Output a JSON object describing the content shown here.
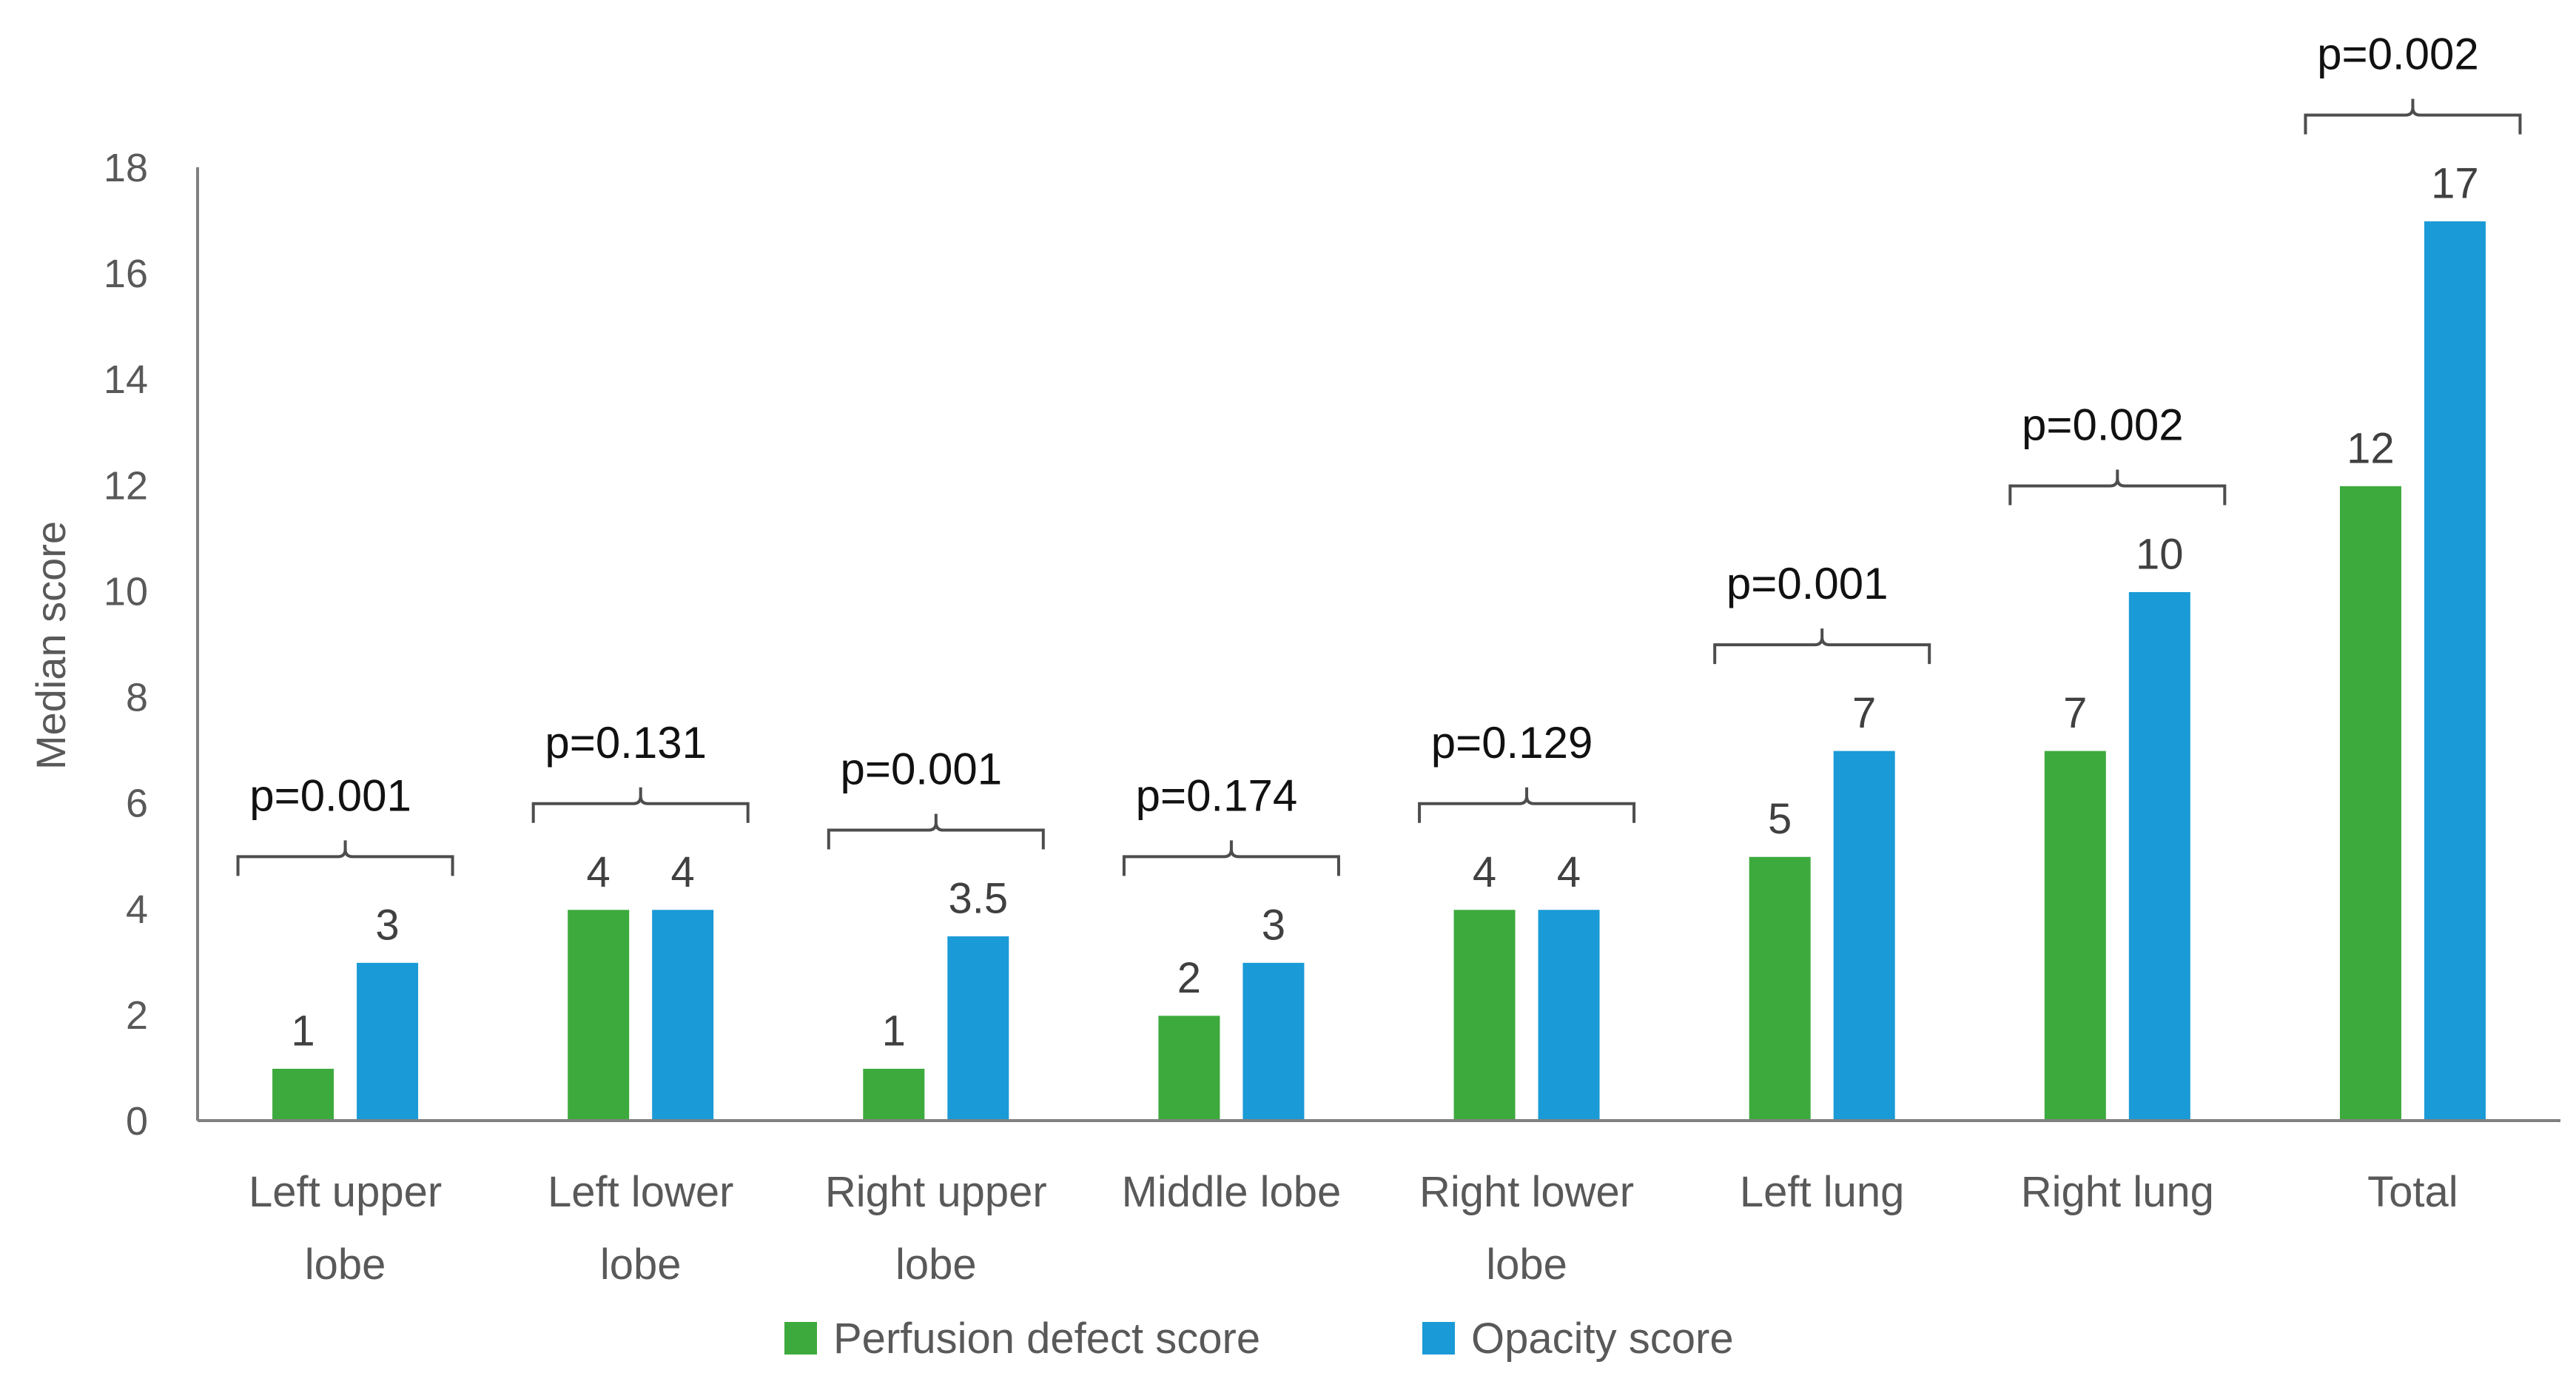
{
  "chart_data": {
    "type": "bar",
    "categories": [
      [
        "Left upper",
        "lobe"
      ],
      [
        "Left lower",
        "lobe"
      ],
      [
        "Right upper",
        "lobe"
      ],
      [
        "Middle lobe"
      ],
      [
        "Right lower",
        "lobe"
      ],
      [
        "Left lung"
      ],
      [
        "Right lung"
      ],
      [
        "Total"
      ]
    ],
    "series": [
      {
        "name": "Perfusion defect score",
        "color": "#3DAA3D",
        "values": [
          1,
          4,
          1,
          2,
          4,
          5,
          7,
          12
        ]
      },
      {
        "name": "Opacity score",
        "color": "#1A9AD6",
        "values": [
          3,
          4,
          3.5,
          3,
          4,
          7,
          10,
          17
        ]
      }
    ],
    "data_labels": [
      [
        "1",
        "4",
        "1",
        "2",
        "4",
        "5",
        "7",
        "12"
      ],
      [
        "3",
        "4",
        "3.5",
        "3",
        "4",
        "7",
        "10",
        "17"
      ]
    ],
    "p_values": [
      "p=0.001",
      "p=0.131",
      "p=0.001",
      "p=0.174",
      "p=0.129",
      "p=0.001",
      "p=0.002",
      "p=0.002"
    ],
    "xlabel": "",
    "ylabel": "Median score",
    "ylim": [
      0,
      18
    ],
    "yticks": [
      0,
      2,
      4,
      6,
      8,
      10,
      12,
      14,
      16,
      18
    ],
    "grid": false,
    "legend_position": "bottom"
  }
}
